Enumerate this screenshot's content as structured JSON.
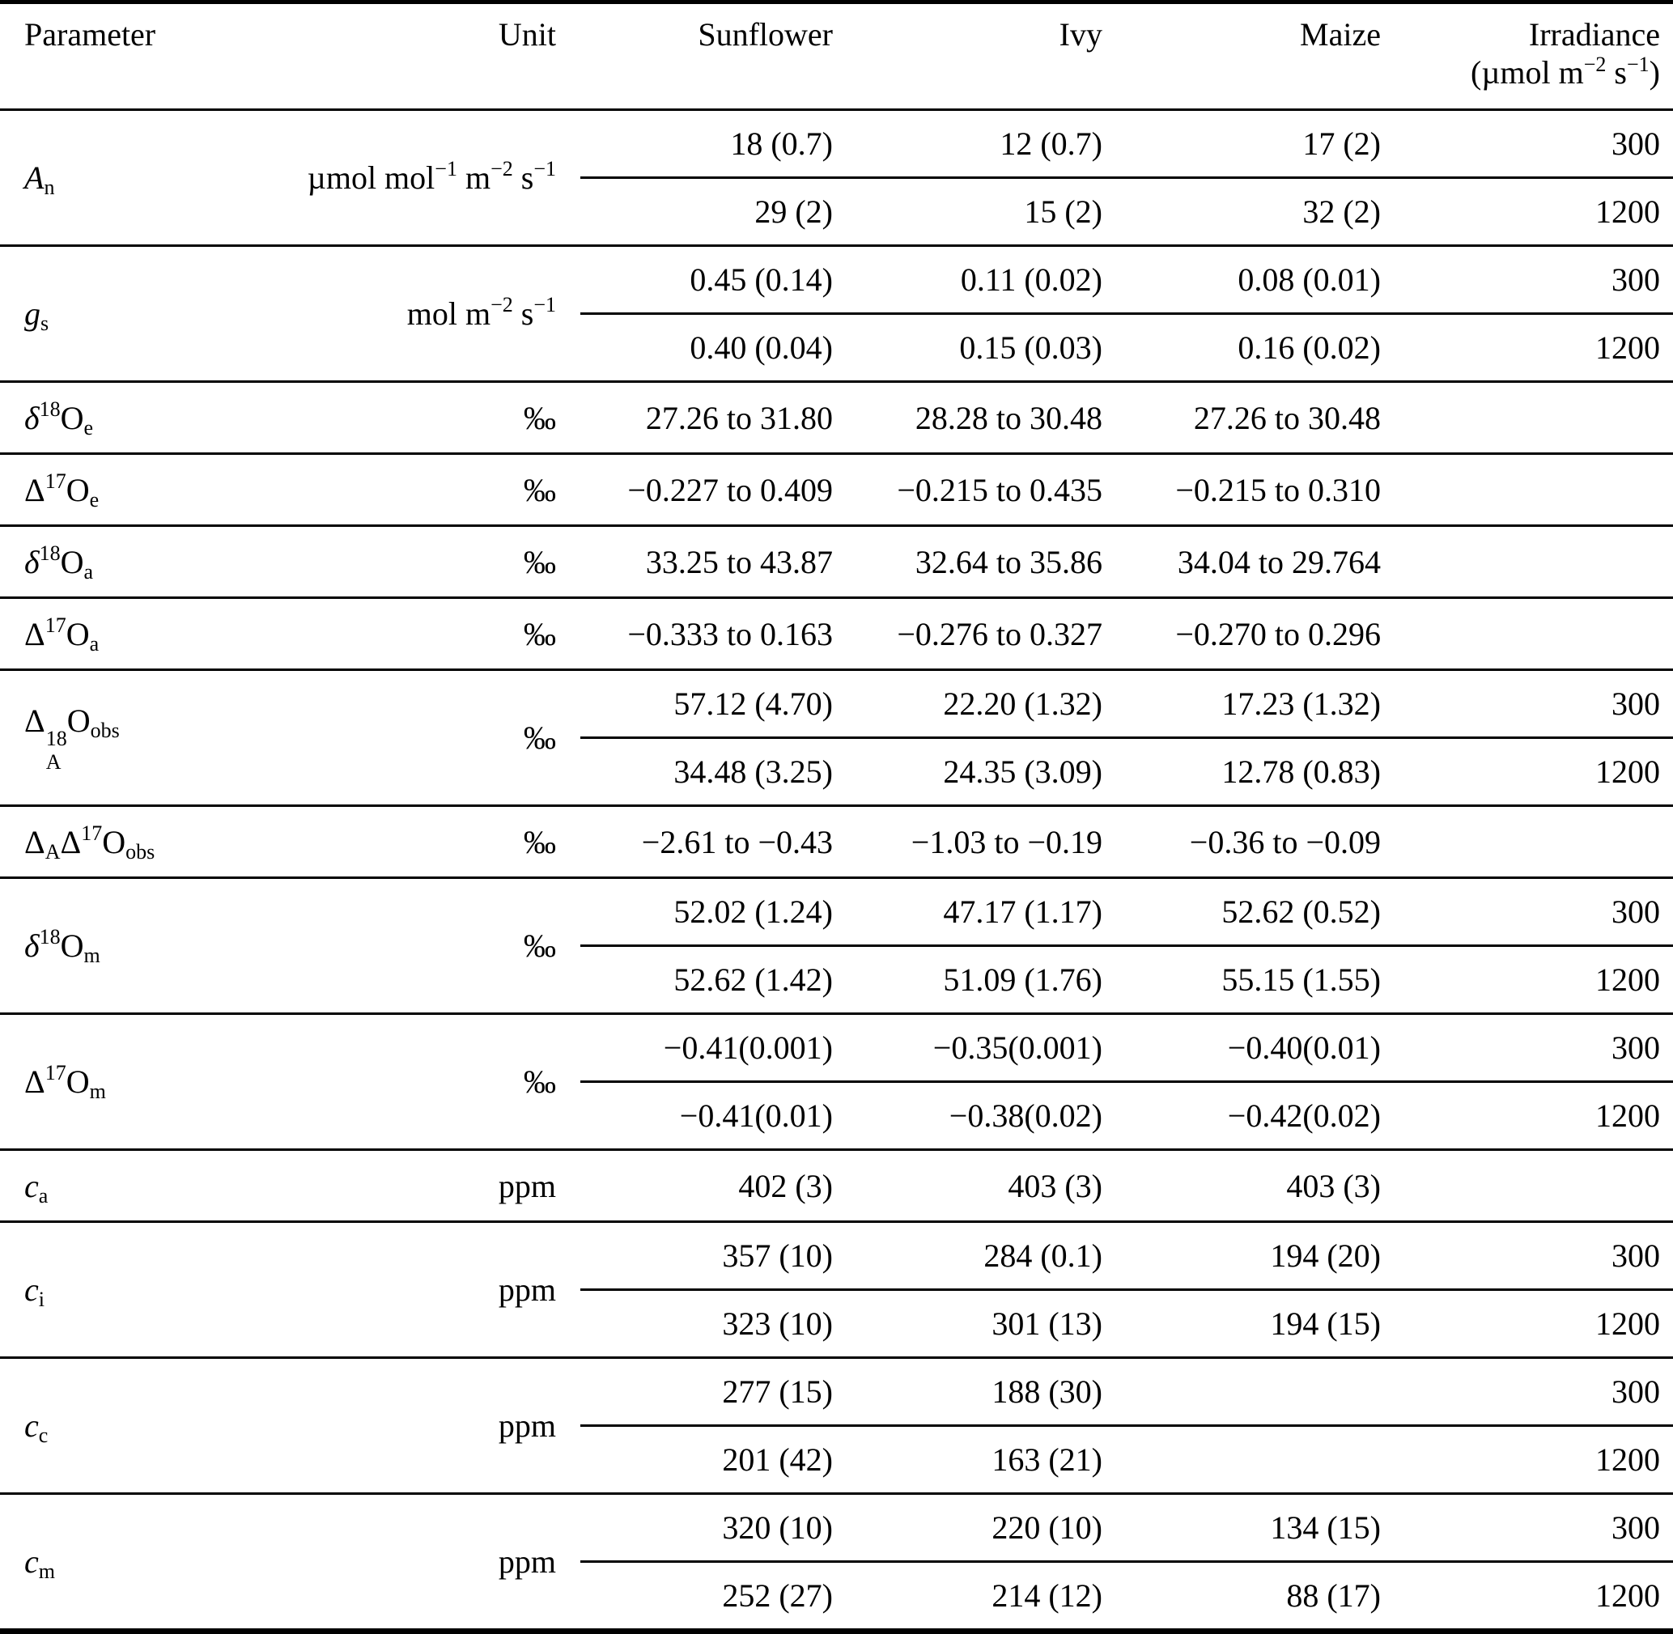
{
  "colors": {
    "background": "#ffffff",
    "text": "#000000",
    "rule": "#000000"
  },
  "table": {
    "header": {
      "parameter": "Parameter",
      "unit": "Unit",
      "sunflower": "Sunflower",
      "ivy": "Ivy",
      "maize": "Maize",
      "irradiance_line1": "Irradiance",
      "irradiance_line2": [
        {
          "t": "(µmol m"
        },
        {
          "t": "−2",
          "f": "sup"
        },
        {
          "t": " s"
        },
        {
          "t": "−1",
          "f": "sup"
        },
        {
          "t": ")"
        }
      ]
    },
    "rows": [
      {
        "param": [
          {
            "t": "A",
            "f": "i"
          },
          {
            "t": "n",
            "f": "sub"
          }
        ],
        "unit": [
          {
            "t": "µmol mol"
          },
          {
            "t": "−1",
            "f": "sup"
          },
          {
            "t": " m"
          },
          {
            "t": "−2",
            "f": "sup"
          },
          {
            "t": " s"
          },
          {
            "t": "−1",
            "f": "sup"
          }
        ],
        "sub_rows": [
          {
            "sunflower": "18 (0.7)",
            "ivy": "12 (0.7)",
            "maize": "17 (2)",
            "irradiance": "300"
          },
          {
            "sunflower": "29 (2)",
            "ivy": "15 (2)",
            "maize": "32 (2)",
            "irradiance": "1200"
          }
        ]
      },
      {
        "param": [
          {
            "t": "g",
            "f": "i"
          },
          {
            "t": "s",
            "f": "sub"
          }
        ],
        "unit": [
          {
            "t": "mol m"
          },
          {
            "t": "−2",
            "f": "sup"
          },
          {
            "t": " s"
          },
          {
            "t": "−1",
            "f": "sup"
          }
        ],
        "sub_rows": [
          {
            "sunflower": "0.45 (0.14)",
            "ivy": "0.11 (0.02)",
            "maize": "0.08 (0.01)",
            "irradiance": "300"
          },
          {
            "sunflower": "0.40 (0.04)",
            "ivy": "0.15 (0.03)",
            "maize": "0.16 (0.02)",
            "irradiance": "1200"
          }
        ]
      },
      {
        "param": [
          {
            "t": "δ",
            "f": "i"
          },
          {
            "t": "18",
            "f": "sup"
          },
          {
            "t": "O"
          },
          {
            "t": "e",
            "f": "sub"
          }
        ],
        "unit": [
          {
            "t": "‰"
          }
        ],
        "sub_rows": [
          {
            "sunflower": "27.26 to 31.80",
            "ivy": "28.28 to 30.48",
            "maize": "27.26 to 30.48",
            "irradiance": ""
          }
        ]
      },
      {
        "param": [
          {
            "t": "Δ"
          },
          {
            "t": "17",
            "f": "sup"
          },
          {
            "t": "O"
          },
          {
            "t": "e",
            "f": "sub"
          }
        ],
        "unit": [
          {
            "t": "‰"
          }
        ],
        "sub_rows": [
          {
            "sunflower": "−0.227 to 0.409",
            "ivy": "−0.215 to 0.435",
            "maize": "−0.215 to 0.310",
            "irradiance": ""
          }
        ]
      },
      {
        "param": [
          {
            "t": "δ",
            "f": "i"
          },
          {
            "t": "18",
            "f": "sup"
          },
          {
            "t": "O"
          },
          {
            "t": "a",
            "f": "sub"
          }
        ],
        "unit": [
          {
            "t": "‰"
          }
        ],
        "sub_rows": [
          {
            "sunflower": "33.25 to 43.87",
            "ivy": "32.64 to 35.86",
            "maize": "34.04 to 29.764",
            "irradiance": ""
          }
        ]
      },
      {
        "param": [
          {
            "t": "Δ"
          },
          {
            "t": "17",
            "f": "sup"
          },
          {
            "t": "O"
          },
          {
            "t": "a",
            "f": "sub"
          }
        ],
        "unit": [
          {
            "t": "‰"
          }
        ],
        "sub_rows": [
          {
            "sunflower": "−0.333 to 0.163",
            "ivy": "−0.276 to 0.327",
            "maize": "−0.270 to 0.296",
            "irradiance": ""
          }
        ]
      },
      {
        "param": [
          {
            "t": "Δ"
          },
          {
            "f": "stack",
            "sup": "18",
            "sub": "A"
          },
          {
            "t": "O"
          },
          {
            "t": "obs",
            "f": "sub"
          }
        ],
        "unit": [
          {
            "t": "‰"
          }
        ],
        "sub_rows": [
          {
            "sunflower": "57.12 (4.70)",
            "ivy": "22.20 (1.32)",
            "maize": "17.23 (1.32)",
            "irradiance": "300"
          },
          {
            "sunflower": "34.48 (3.25)",
            "ivy": "24.35 (3.09)",
            "maize": "12.78 (0.83)",
            "irradiance": "1200"
          }
        ]
      },
      {
        "param": [
          {
            "t": "Δ"
          },
          {
            "t": "A",
            "f": "sub"
          },
          {
            "t": "Δ"
          },
          {
            "t": "17",
            "f": "sup"
          },
          {
            "t": "O"
          },
          {
            "t": "obs",
            "f": "sub"
          }
        ],
        "unit": [
          {
            "t": "‰"
          }
        ],
        "sub_rows": [
          {
            "sunflower": "−2.61 to −0.43",
            "ivy": "−1.03 to −0.19",
            "maize": "−0.36 to −0.09",
            "irradiance": ""
          }
        ]
      },
      {
        "param": [
          {
            "t": "δ",
            "f": "i"
          },
          {
            "t": "18",
            "f": "sup"
          },
          {
            "t": "O"
          },
          {
            "t": "m",
            "f": "sub"
          }
        ],
        "unit": [
          {
            "t": "‰"
          }
        ],
        "sub_rows": [
          {
            "sunflower": "52.02 (1.24)",
            "ivy": "47.17 (1.17)",
            "maize": "52.62 (0.52)",
            "irradiance": "300"
          },
          {
            "sunflower": "52.62 (1.42)",
            "ivy": "51.09 (1.76)",
            "maize": "55.15 (1.55)",
            "irradiance": "1200"
          }
        ]
      },
      {
        "param": [
          {
            "t": "Δ"
          },
          {
            "t": "17",
            "f": "sup"
          },
          {
            "t": "O"
          },
          {
            "t": "m",
            "f": "sub"
          }
        ],
        "unit": [
          {
            "t": "‰"
          }
        ],
        "sub_rows": [
          {
            "sunflower": "−0.41(0.001)",
            "ivy": "−0.35(0.001)",
            "maize": "−0.40(0.01)",
            "irradiance": "300"
          },
          {
            "sunflower": "−0.41(0.01)",
            "ivy": "−0.38(0.02)",
            "maize": "−0.42(0.02)",
            "irradiance": "1200"
          }
        ]
      },
      {
        "param": [
          {
            "t": "c",
            "f": "i"
          },
          {
            "t": "a",
            "f": "sub"
          }
        ],
        "unit": [
          {
            "t": "ppm"
          }
        ],
        "sub_rows": [
          {
            "sunflower": "402 (3)",
            "ivy": "403 (3)",
            "maize": "403 (3)",
            "irradiance": ""
          }
        ]
      },
      {
        "param": [
          {
            "t": "c",
            "f": "i"
          },
          {
            "t": "i",
            "f": "sub"
          }
        ],
        "unit": [
          {
            "t": "ppm"
          }
        ],
        "sub_rows": [
          {
            "sunflower": "357 (10)",
            "ivy": "284 (0.1)",
            "maize": "194 (20)",
            "irradiance": "300"
          },
          {
            "sunflower": "323 (10)",
            "ivy": "301 (13)",
            "maize": "194 (15)",
            "irradiance": "1200"
          }
        ]
      },
      {
        "param": [
          {
            "t": "c",
            "f": "i"
          },
          {
            "t": "c",
            "f": "sub"
          }
        ],
        "unit": [
          {
            "t": "ppm"
          }
        ],
        "sub_rows": [
          {
            "sunflower": "277 (15)",
            "ivy": "188 (30)",
            "maize": "",
            "irradiance": "300"
          },
          {
            "sunflower": "201 (42)",
            "ivy": "163 (21)",
            "maize": "",
            "irradiance": "1200"
          }
        ]
      },
      {
        "param": [
          {
            "t": "c",
            "f": "i"
          },
          {
            "t": "m",
            "f": "sub"
          }
        ],
        "unit": [
          {
            "t": "ppm"
          }
        ],
        "sub_rows": [
          {
            "sunflower": "320 (10)",
            "ivy": "220 (10)",
            "maize": "134 (15)",
            "irradiance": "300"
          },
          {
            "sunflower": "252 (27)",
            "ivy": "214 (12)",
            "maize": "88 (17)",
            "irradiance": "1200"
          }
        ]
      }
    ]
  }
}
